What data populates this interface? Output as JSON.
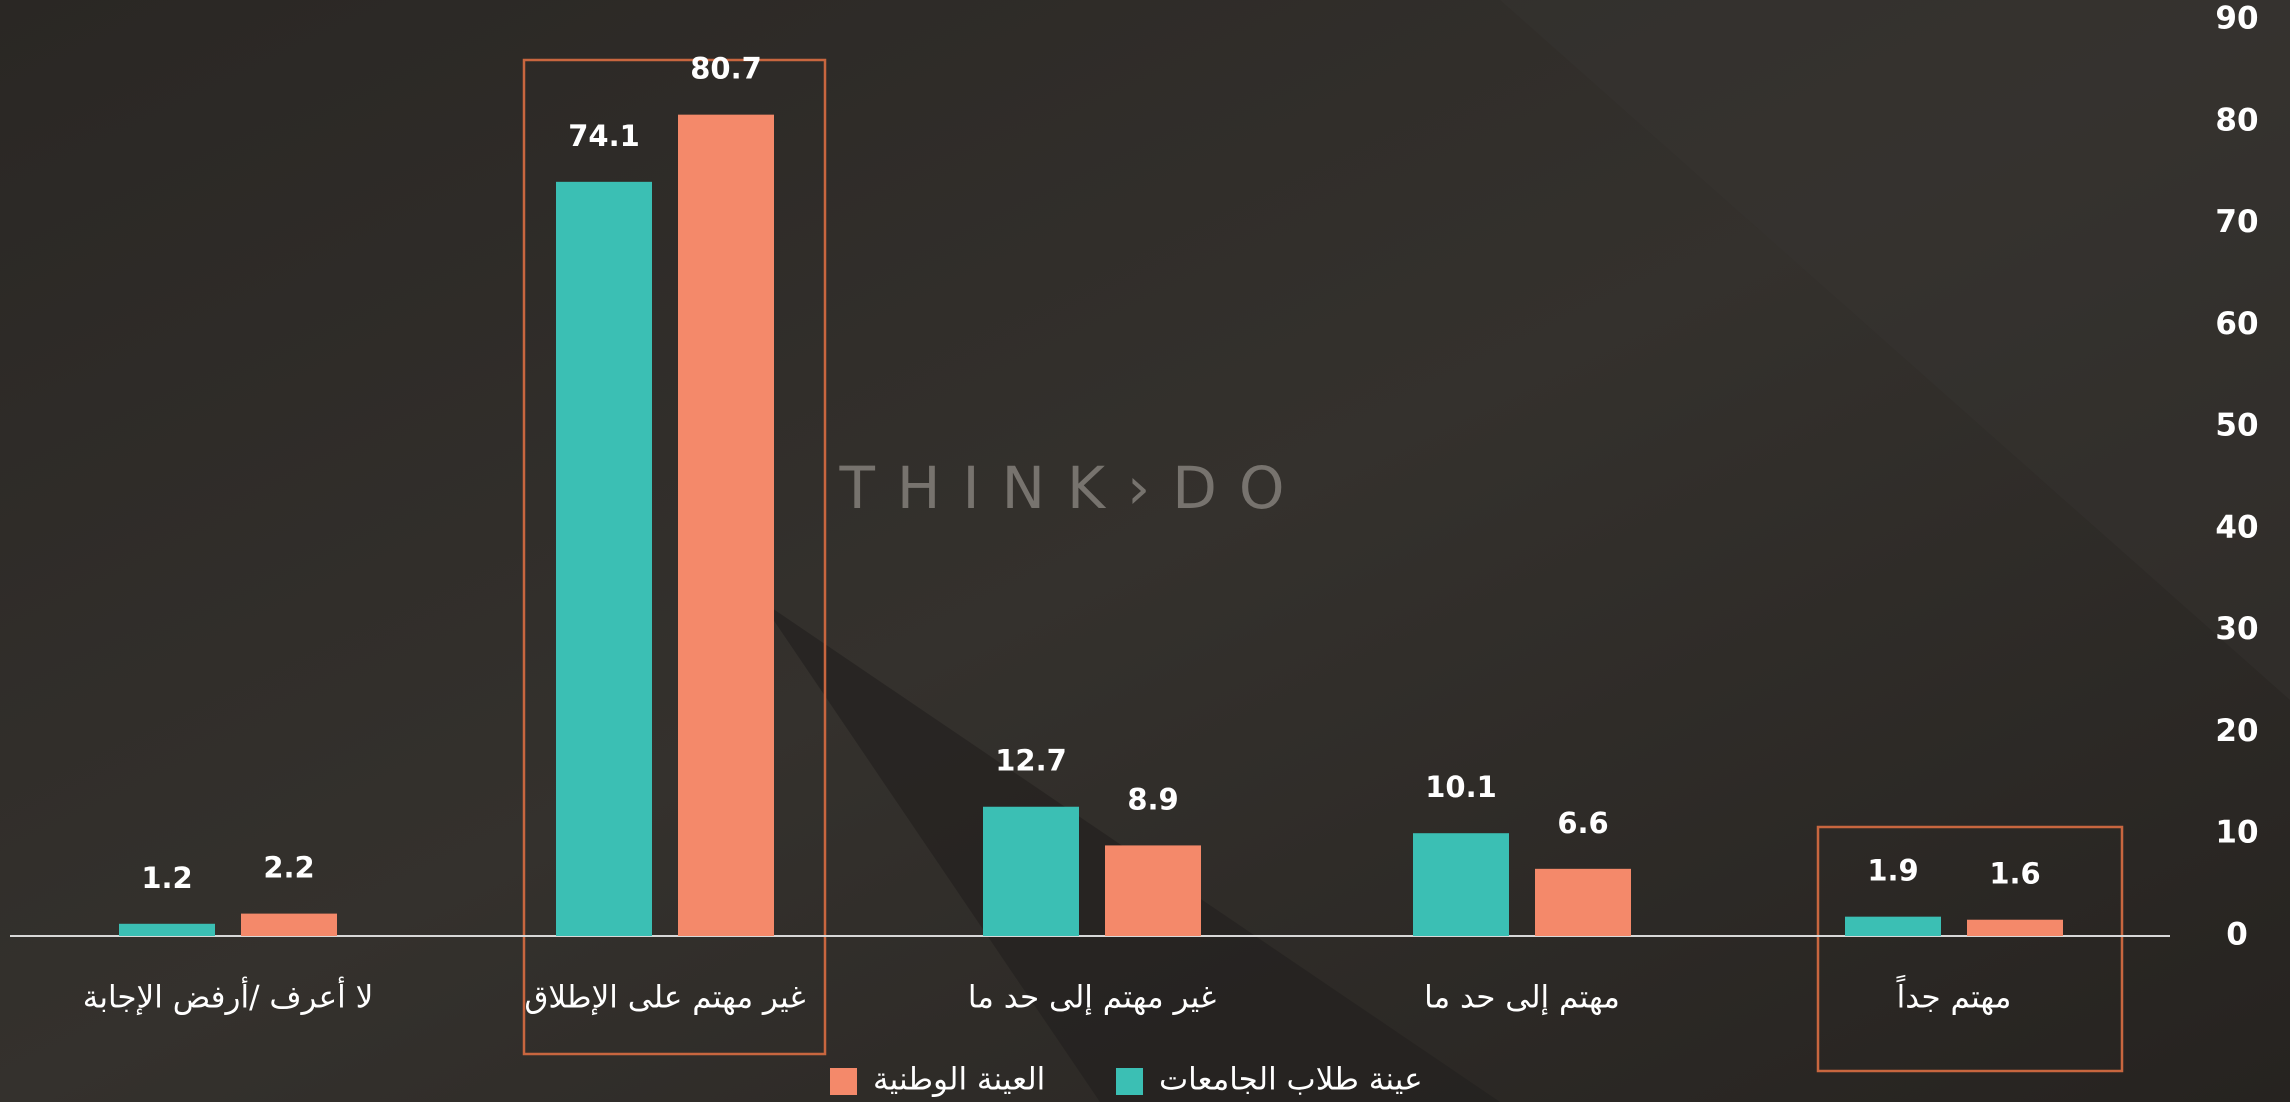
{
  "watermark": "THINK›DO",
  "chart_data": {
    "type": "bar",
    "categories": [
      "لا أعرف /أرفض الإجابة",
      "غير مهتم على الإطلاق",
      "غير مهتم إلى حد ما",
      "مهتم إلى حد ما",
      "مهتم جداً"
    ],
    "series": [
      {
        "name": "عينة طلاب الجامعات",
        "color": "#3bbfb4",
        "values": [
          1.2,
          74.1,
          12.7,
          10.1,
          1.9
        ]
      },
      {
        "name": "العينة الوطنية",
        "color": "#f4896a",
        "values": [
          2.2,
          80.7,
          8.9,
          6.6,
          1.6
        ]
      }
    ],
    "ylim": [
      0,
      90
    ],
    "yticks": [
      0,
      10,
      20,
      30,
      40,
      50,
      60,
      70,
      80,
      90
    ],
    "grid": false,
    "legend": "bottom"
  }
}
